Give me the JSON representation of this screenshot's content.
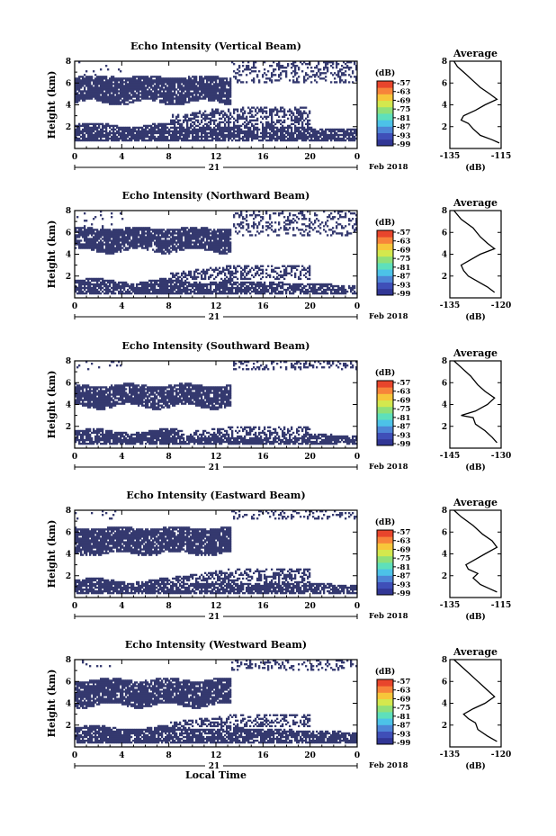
{
  "colors": {
    "echo": "#34396f",
    "frame": "#000000",
    "background": "#ffffff",
    "colorbar": [
      "#313695",
      "#3f4fb8",
      "#4d85d6",
      "#4cc2e8",
      "#5ee0bb",
      "#8fe07a",
      "#d3e84e",
      "#f7c63a",
      "#f7843a",
      "#e8452c"
    ]
  },
  "chart_data": [
    {
      "type": "heatmap",
      "title": "Echo Intensity (Vertical Beam)",
      "ylabel": "Height (km)",
      "x_ticks": [
        "0",
        "4",
        "8",
        "12",
        "16",
        "20",
        "0"
      ],
      "y_ticks": [
        "2",
        "4",
        "6",
        "8"
      ],
      "date_label": "21",
      "month_label": "Feb 2018",
      "colorbar": {
        "unit": "(dB)",
        "ticks": [
          "-57",
          "-63",
          "-69",
          "-75",
          "-81",
          "-87",
          "-93",
          "-99"
        ]
      },
      "average": {
        "title": "Average",
        "x_ticks": [
          "-135",
          "-115"
        ],
        "y_ticks": [
          "2",
          "4",
          "6",
          "8"
        ],
        "xlabel": "(dB)"
      }
    },
    {
      "type": "heatmap",
      "title": "Echo Intensity (Northward Beam)",
      "ylabel": "Height (km)",
      "x_ticks": [
        "0",
        "4",
        "8",
        "12",
        "16",
        "20",
        "0"
      ],
      "y_ticks": [
        "2",
        "4",
        "6",
        "8"
      ],
      "date_label": "21",
      "month_label": "Feb 2018",
      "colorbar": {
        "unit": "(dB)",
        "ticks": [
          "-57",
          "-63",
          "-69",
          "-75",
          "-81",
          "-87",
          "-93",
          "-99"
        ]
      },
      "average": {
        "title": "Average",
        "x_ticks": [
          "-135",
          "-120"
        ],
        "y_ticks": [
          "2",
          "4",
          "6",
          "8"
        ],
        "xlabel": "(dB)"
      }
    },
    {
      "type": "heatmap",
      "title": "Echo Intensity (Southward Beam)",
      "ylabel": "Height (km)",
      "x_ticks": [
        "0",
        "4",
        "8",
        "12",
        "16",
        "20",
        "0"
      ],
      "y_ticks": [
        "2",
        "4",
        "6",
        "8"
      ],
      "date_label": "21",
      "month_label": "Feb 2018",
      "colorbar": {
        "unit": "(dB)",
        "ticks": [
          "-57",
          "-63",
          "-69",
          "-75",
          "-81",
          "-87",
          "-93",
          "-99"
        ]
      },
      "average": {
        "title": "Average",
        "x_ticks": [
          "-145",
          "-130"
        ],
        "y_ticks": [
          "2",
          "4",
          "6",
          "8"
        ],
        "xlabel": "(dB)"
      }
    },
    {
      "type": "heatmap",
      "title": "Echo Intensity (Eastward Beam)",
      "ylabel": "Height (km)",
      "x_ticks": [
        "0",
        "4",
        "8",
        "12",
        "16",
        "20",
        "0"
      ],
      "y_ticks": [
        "2",
        "4",
        "6",
        "8"
      ],
      "date_label": "21",
      "month_label": "Feb 2018",
      "colorbar": {
        "unit": "(dB)",
        "ticks": [
          "-57",
          "-63",
          "-69",
          "-75",
          "-81",
          "-87",
          "-93",
          "-99"
        ]
      },
      "average": {
        "title": "Average",
        "x_ticks": [
          "-135",
          "-115"
        ],
        "y_ticks": [
          "2",
          "4",
          "6",
          "8"
        ],
        "xlabel": "(dB)"
      }
    },
    {
      "type": "heatmap",
      "title": "Echo Intensity (Westward Beam)",
      "ylabel": "Height (km)",
      "x_ticks": [
        "0",
        "4",
        "8",
        "12",
        "16",
        "20",
        "0"
      ],
      "y_ticks": [
        "2",
        "4",
        "6",
        "8"
      ],
      "date_label": "21",
      "month_label": "Feb 2018",
      "xlabel": "Local Time",
      "colorbar": {
        "unit": "(dB)",
        "ticks": [
          "-57",
          "-63",
          "-69",
          "-75",
          "-81",
          "-87",
          "-93",
          "-99"
        ]
      },
      "average": {
        "title": "Average",
        "x_ticks": [
          "-135",
          "-120"
        ],
        "y_ticks": [
          "2",
          "4",
          "6",
          "8"
        ],
        "xlabel": "(dB)"
      }
    }
  ]
}
